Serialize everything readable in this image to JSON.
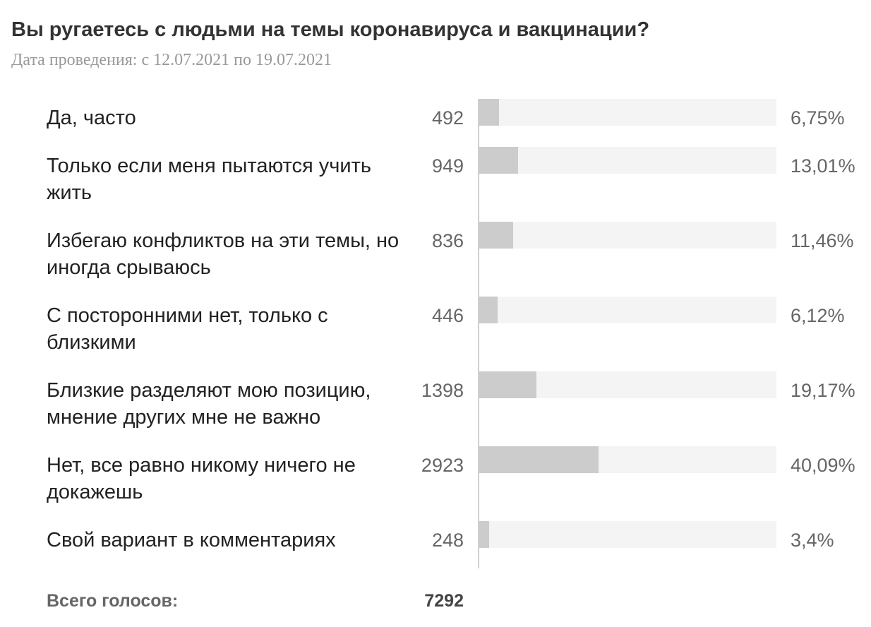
{
  "poll": {
    "question": "Вы ругаетесь с людьми на темы коронавируса и вакцинации?",
    "date_line": "Дата проведения: с 12.07.2021 по 19.07.2021",
    "total_label": "Всего голосов:",
    "total_value": "7292"
  },
  "colors": {
    "bar_fill": "#cccccc",
    "bar_track": "#f4f4f4",
    "axis": "#cfcfcf"
  },
  "chart_data": {
    "type": "bar",
    "orientation": "horizontal",
    "title": "Вы ругаетесь с людьми на темы коронавируса и вакцинации?",
    "subtitle": "Дата проведения: с 12.07.2021 по 19.07.2021",
    "categories": [
      "Да, часто",
      "Только если меня пытаются учить жить",
      "Избегаю конфликтов на эти темы, но иногда срываюсь",
      "С посторонними нет, только с близкими",
      "Близкие разделяют мою позицию, мнение других мне не важно",
      "Нет, все равно никому ничего не докажешь",
      "Свой вариант в комментариях"
    ],
    "counts": [
      492,
      949,
      836,
      446,
      1398,
      2923,
      248
    ],
    "count_labels": [
      "492",
      "949",
      "836",
      "446",
      "1398",
      "2923",
      "248"
    ],
    "values": [
      6.75,
      13.01,
      11.46,
      6.12,
      19.17,
      40.09,
      3.4
    ],
    "value_labels": [
      "6,75%",
      "13,01%",
      "11,46%",
      "6,12%",
      "19,17%",
      "40,09%",
      "3,4%"
    ],
    "xlim": [
      0,
      100
    ],
    "total": 7292,
    "grid": false,
    "legend": "none"
  }
}
